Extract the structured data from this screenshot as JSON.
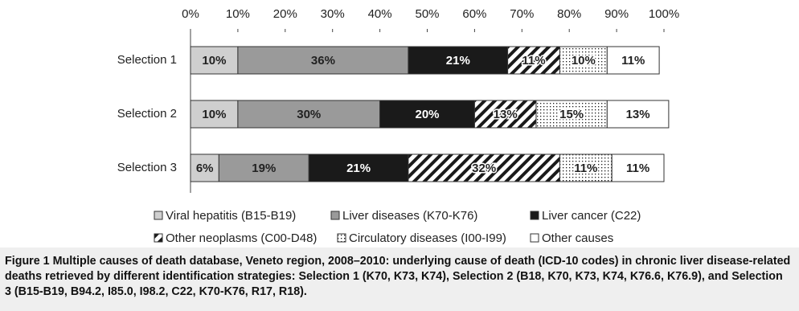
{
  "chart_data": {
    "type": "stacked-barh",
    "categories": [
      "Selection 1",
      "Selection 2",
      "Selection 3"
    ],
    "series": [
      {
        "name": "Viral hepatitis (B15-B19)",
        "color": "#cfcfcf",
        "values": [
          10,
          10,
          6
        ],
        "value_labels": [
          "10%",
          "10%",
          "6%"
        ]
      },
      {
        "name": "Liver diseases (K70-K76)",
        "color": "#9a9a9a",
        "values": [
          36,
          30,
          19
        ],
        "value_labels": [
          "36%",
          "30%",
          "19%"
        ]
      },
      {
        "name": "Liver cancer (C22)",
        "color": "#1a1a1a",
        "values": [
          21,
          20,
          21
        ],
        "value_labels": [
          "21%",
          "20%",
          "21%"
        ]
      },
      {
        "name": "Other neoplasms (C00-D48)",
        "color": "#1a1a1a",
        "pattern": "stripes",
        "values": [
          11,
          13,
          32
        ],
        "value_labels": [
          "11%",
          "13%",
          "32%"
        ]
      },
      {
        "name": "Circulatory diseases (I00-I99)",
        "color": "#1a1a1a",
        "pattern": "dots",
        "values": [
          10,
          15,
          11
        ],
        "value_labels": [
          "10%",
          "15%",
          "11%"
        ]
      },
      {
        "name": "Other causes",
        "color": "#ffffff",
        "values": [
          11,
          13,
          11
        ],
        "value_labels": [
          "11%",
          "13%",
          "11%"
        ]
      }
    ],
    "xlim": [
      0,
      100
    ],
    "xticks": [
      {
        "value": 0,
        "label": "0%"
      },
      {
        "value": 10,
        "label": "10%"
      },
      {
        "value": 20,
        "label": "20%"
      },
      {
        "value": 30,
        "label": "30%"
      },
      {
        "value": 40,
        "label": "40%"
      },
      {
        "value": 50,
        "label": "50%"
      },
      {
        "value": 60,
        "label": "60%"
      },
      {
        "value": 70,
        "label": "70%"
      },
      {
        "value": 80,
        "label": "80%"
      },
      {
        "value": 90,
        "label": "90%"
      },
      {
        "value": 100,
        "label": "100%"
      }
    ],
    "legend": "bottom"
  },
  "caption": {
    "label": "Figure 1",
    "text": "Multiple causes of death database, Veneto region, 2008–2010: underlying cause of death (ICD-10 codes) in chronic liver disease-related deaths retrieved by different identification strategies: Selection 1 (K70, K73, K74), Selection 2 (B18, K70, K73, K74, K76.6, K76.9), and Selection 3 (B15-B19, B94.2, I85.0, I98.2, C22, K70-K76, R17, R18)."
  }
}
